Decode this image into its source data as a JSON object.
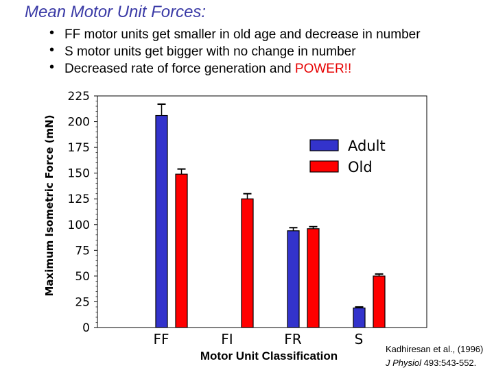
{
  "slide": {
    "title": "Mean Motor Unit Forces:",
    "bullets": [
      "FF motor units get smaller in old age and decrease in number",
      "S motor units get bigger with no change in number",
      "Decreased rate of force generation and "
    ],
    "bullet3_highlight": "POWER!!",
    "citation_line1": "Kadhiresan et al., (1996)",
    "citation_journal": "J Physiol",
    "citation_rest": " 493:543-552."
  },
  "colors": {
    "adult": "#3333cc",
    "old": "#ff0000",
    "highlight": "#e60000",
    "title": "#3a3aa6"
  },
  "chart_data": {
    "type": "bar",
    "title": "",
    "xlabel": "Motor Unit Classification",
    "ylabel": "Maximum Isometric Force (mN)",
    "ylim": [
      0,
      225
    ],
    "yticks": [
      0,
      25,
      50,
      75,
      100,
      125,
      150,
      175,
      200,
      225
    ],
    "categories": [
      "FF",
      "FI",
      "FR",
      "S"
    ],
    "series": [
      {
        "name": "Adult",
        "values": [
          206,
          null,
          94,
          19
        ],
        "errors": [
          11,
          null,
          3,
          1
        ]
      },
      {
        "name": "Old",
        "values": [
          149,
          125,
          96,
          50
        ],
        "errors": [
          5,
          5,
          2,
          2
        ]
      }
    ],
    "legend_position": "top-right",
    "grid": false
  }
}
